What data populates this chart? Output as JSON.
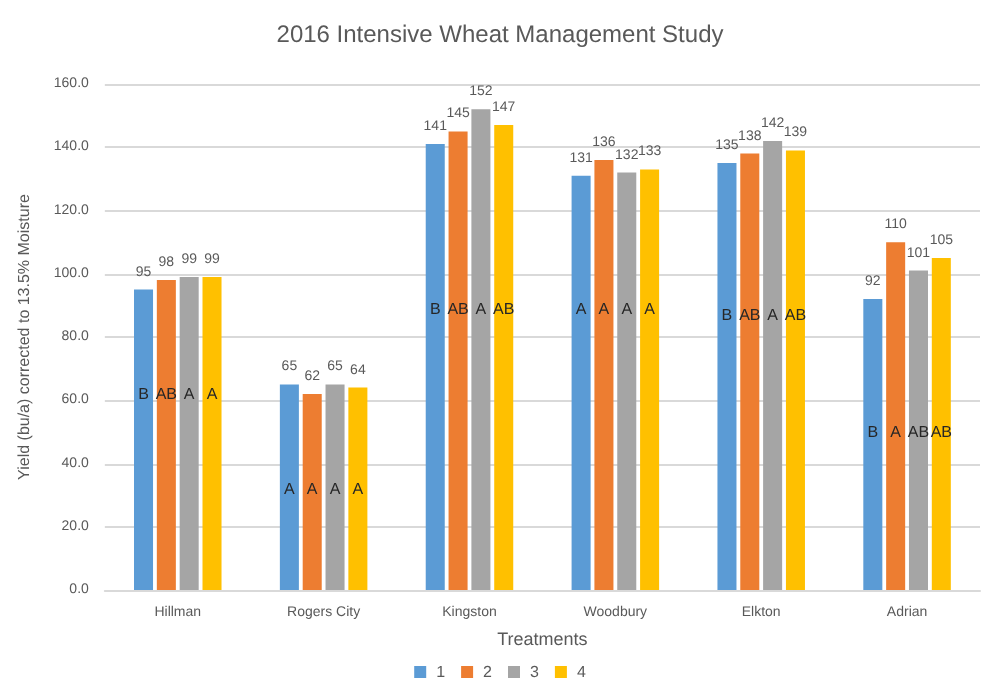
{
  "chart_data": {
    "type": "bar",
    "title": "2016 Intensive Wheat Management Study",
    "xlabel": "Treatments",
    "ylabel": "Yield (bu/a) corrected to 13.5% Moisture",
    "categories": [
      "Hillman",
      "Rogers City",
      "Kingston",
      "Woodbury",
      "Elkton",
      "Adrian"
    ],
    "series": [
      {
        "name": "1",
        "color": "#5b9bd5",
        "values": [
          95,
          65,
          141,
          131,
          135,
          92
        ]
      },
      {
        "name": "2",
        "color": "#ed7d31",
        "values": [
          98,
          62,
          145,
          136,
          138,
          110
        ]
      },
      {
        "name": "3",
        "color": "#a5a5a5",
        "values": [
          99,
          65,
          152,
          132,
          142,
          101
        ]
      },
      {
        "name": "4",
        "color": "#ffc000",
        "values": [
          99,
          64,
          147,
          133,
          139,
          105
        ]
      }
    ],
    "ylim": [
      0,
      160
    ],
    "yticks": [
      {
        "value": 0,
        "label": "0.0"
      },
      {
        "value": 20,
        "label": "20.0"
      },
      {
        "value": 40,
        "label": "40.0"
      },
      {
        "value": 60,
        "label": "60.0"
      },
      {
        "value": 80,
        "label": "80.0"
      },
      {
        "value": 100,
        "label": "100.0"
      },
      {
        "value": 120,
        "label": "120.0"
      },
      {
        "value": 140,
        "label": "140.0"
      },
      {
        "value": 160,
        "label": "160.0"
      }
    ],
    "grid": "y",
    "legend": "bottom",
    "data_labels": true,
    "annotations": [
      {
        "text": "B",
        "x": "Hillman",
        "y": 62
      },
      {
        "text": "AB",
        "x": "Hillman",
        "y": 62
      },
      {
        "text": "A",
        "x": "Hillman",
        "y": 62
      },
      {
        "text": "A",
        "x": "Hillman",
        "y": 62
      },
      {
        "text": "A",
        "x": "Rogers City",
        "y": 32
      },
      {
        "text": "A",
        "x": "Rogers City",
        "y": 32
      },
      {
        "text": "A",
        "x": "Rogers City",
        "y": 32
      },
      {
        "text": "A",
        "x": "Rogers City",
        "y": 32
      },
      {
        "text": "B",
        "x": "Kingston",
        "y": 89
      },
      {
        "text": "AB",
        "x": "Kingston",
        "y": 89
      },
      {
        "text": "A",
        "x": "Kingston",
        "y": 89
      },
      {
        "text": "AB",
        "x": "Kingston",
        "y": 89
      },
      {
        "text": "A",
        "x": "Woodbury",
        "y": 89
      },
      {
        "text": "A",
        "x": "Woodbury",
        "y": 89
      },
      {
        "text": "A",
        "x": "Woodbury",
        "y": 89
      },
      {
        "text": "A",
        "x": "Woodbury",
        "y": 89
      },
      {
        "text": "B",
        "x": "Elkton",
        "y": 87
      },
      {
        "text": "AB",
        "x": "Elkton",
        "y": 87
      },
      {
        "text": "A",
        "x": "Elkton",
        "y": 87
      },
      {
        "text": "AB",
        "x": "Elkton",
        "y": 87
      },
      {
        "text": "B",
        "x": "Adrian",
        "y": 50
      },
      {
        "text": "A",
        "x": "Adrian",
        "y": 50
      },
      {
        "text": "AB",
        "x": "Adrian",
        "y": 50
      },
      {
        "text": "AB",
        "x": "Adrian",
        "y": 50
      }
    ]
  }
}
